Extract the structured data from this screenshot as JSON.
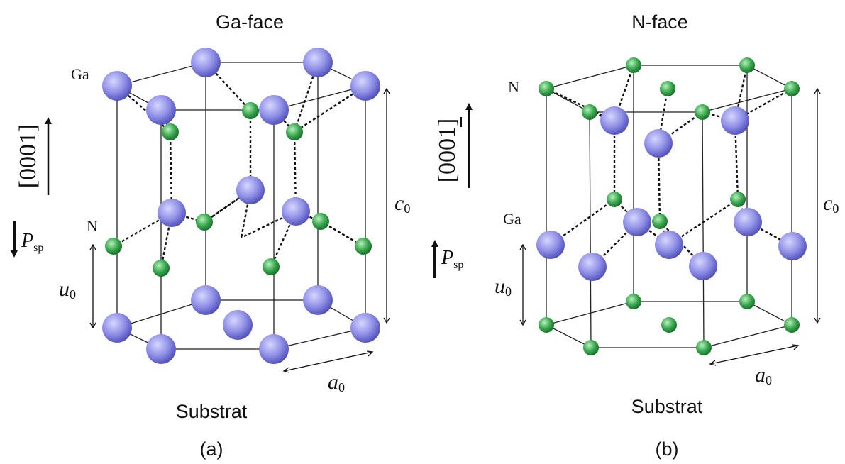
{
  "panel_a": {
    "title": "Ga-face",
    "caption": "(a)",
    "substrate": "Substrat",
    "top_atom_label": "Ga",
    "mid_atom_label": "N",
    "direction": "0001",
    "polarization_symbol": "P",
    "polarization_subscript": "sp",
    "polarization_direction": "down",
    "c_symbol": "c",
    "c_subscript": "0",
    "u_symbol": "u",
    "u_subscript": "0",
    "a_symbol": "a",
    "a_subscript": "0"
  },
  "panel_b": {
    "title": "N-face",
    "caption": "(b)",
    "substrate": "Substrat",
    "top_atom_label": "N",
    "mid_atom_label": "Ga",
    "direction": "0001",
    "direction_bar_on": "last digit",
    "polarization_symbol": "P",
    "polarization_subscript": "sp",
    "polarization_direction": "up",
    "c_symbol": "c",
    "c_subscript": "0",
    "u_symbol": "u",
    "u_subscript": "0",
    "a_symbol": "a",
    "a_subscript": "0"
  },
  "colors": {
    "ga_atom": "#8f8fe6",
    "n_atom": "#3aa84e",
    "line": "#222222"
  }
}
